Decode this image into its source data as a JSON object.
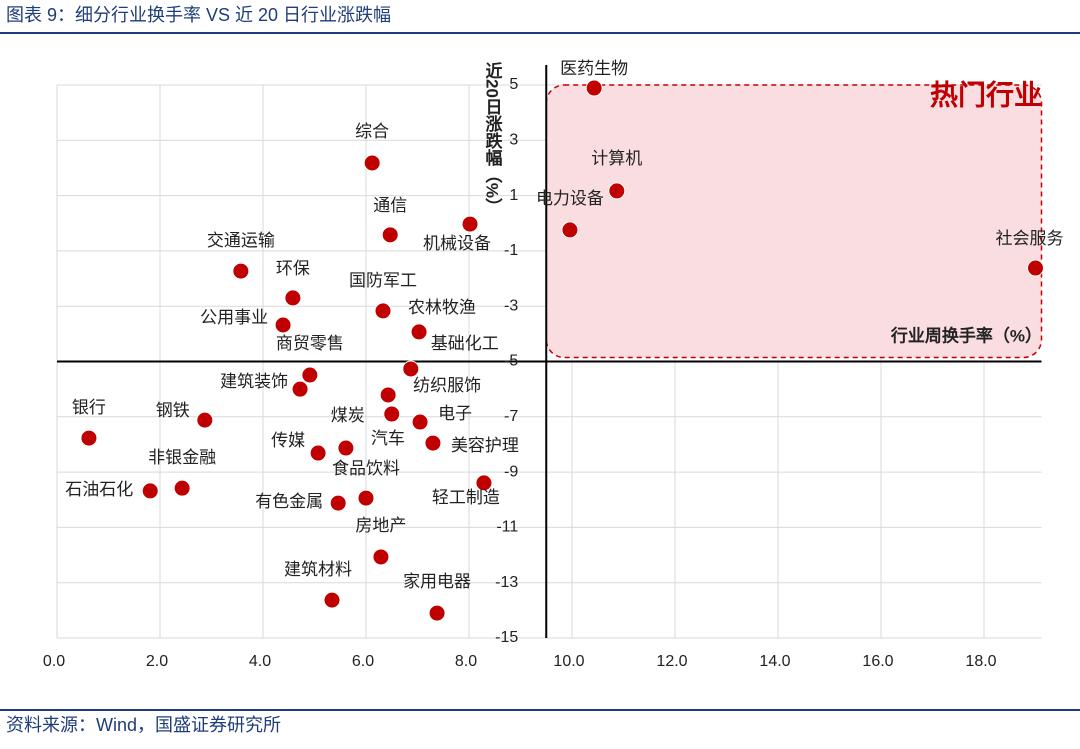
{
  "chart_data": {
    "type": "scatter",
    "title": "图表 9：细分行业换手率 VS 近 20 日行业涨跌幅",
    "source": "资料来源：Wind，国盛证券研究所",
    "x_label": "行业周换手率（%）",
    "y_label": "近20日涨跌幅（%）",
    "annotation": "热门行业",
    "color": "#c00000",
    "grid": true,
    "axis_cross": {
      "x": 9.5,
      "y": -5
    },
    "xlim": [
      0,
      19
    ],
    "ylim": [
      -15,
      5
    ],
    "xticks": [
      {
        "value": 0,
        "label": "0.0"
      },
      {
        "value": 2,
        "label": "2.0"
      },
      {
        "value": 4,
        "label": "4.0"
      },
      {
        "value": 6,
        "label": "6.0"
      },
      {
        "value": 8,
        "label": "8.0"
      },
      {
        "value": 10,
        "label": "10.0"
      },
      {
        "value": 12,
        "label": "12.0"
      },
      {
        "value": 14,
        "label": "14.0"
      },
      {
        "value": 16,
        "label": "16.0"
      },
      {
        "value": 18,
        "label": "18.0"
      }
    ],
    "yticks": [
      5,
      3,
      1,
      -1,
      -3,
      -5,
      -7,
      -9,
      -11,
      -13,
      -15
    ],
    "labels": [
      "医药生物",
      "计算机",
      "电力设备",
      "社会服务",
      "综合",
      "通信",
      "机械设备",
      "交通运输",
      "环保",
      "国防军工",
      "公用事业",
      "农林牧渔",
      "商贸零售",
      "基础化工",
      "建筑装饰",
      "纺织服饰",
      "煤炭",
      "电子",
      "银行",
      "钢铁",
      "汽车",
      "美容护理",
      "传媒",
      "非银金融",
      "石油石化",
      "有色金属",
      "食品饮料",
      "房地产",
      "建筑材料",
      "家用电器",
      "轻工制造"
    ],
    "x": [
      10.43,
      10.87,
      9.96,
      19.0,
      6.12,
      6.47,
      8.02,
      3.57,
      4.58,
      6.33,
      4.39,
      7.03,
      4.91,
      6.87,
      4.72,
      6.43,
      6.5,
      7.05,
      0.62,
      2.87,
      5.61,
      7.3,
      5.07,
      2.43,
      1.81,
      5.46,
      6.0,
      6.29,
      5.34,
      7.38,
      8.29
    ],
    "values": [
      4.89,
      1.17,
      -0.24,
      -1.62,
      2.18,
      -0.42,
      -0.03,
      -1.73,
      -2.7,
      -3.17,
      -3.68,
      -3.93,
      -5.49,
      -5.27,
      -6.0,
      -6.21,
      -6.9,
      -7.19,
      -7.77,
      -7.12,
      -8.13,
      -7.95,
      -8.31,
      -9.58,
      -9.68,
      -10.12,
      -9.94,
      -12.07,
      -13.63,
      -14.1,
      -9.39
    ]
  }
}
